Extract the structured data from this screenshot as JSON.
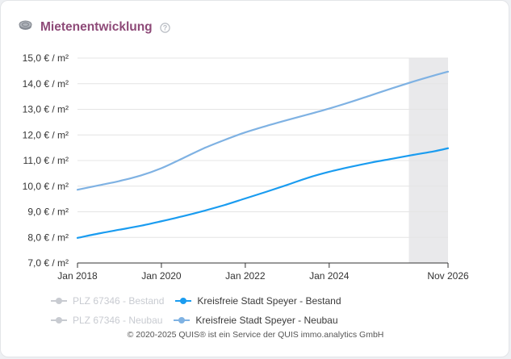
{
  "widget": {
    "title": "Mietenentwicklung",
    "title_icon": "coins-stack-icon",
    "help_icon": "question-circle-icon"
  },
  "chart_data": {
    "type": "line",
    "title": "Mietenentwicklung",
    "xlabel": "",
    "ylabel": "",
    "x_range": [
      2018.0,
      2026.833
    ],
    "ylim": [
      7.0,
      15.0
    ],
    "y_ticks": [
      7,
      8,
      9,
      10,
      11,
      12,
      13,
      14,
      15
    ],
    "y_tick_labels": [
      "7,0 € / m²",
      "8,0 € / m²",
      "9,0 € / m²",
      "10,0 € / m²",
      "11,0 € / m²",
      "12,0 € / m²",
      "13,0 € / m²",
      "14,0 € / m²",
      "15,0 € / m²"
    ],
    "x_ticks": [
      2018,
      2020,
      2022,
      2024,
      2026.833
    ],
    "x_tick_labels": [
      "Jan 2018",
      "Jan 2020",
      "Jan 2022",
      "Jan 2024",
      "Nov 2026"
    ],
    "forecast_band": [
      2025.9,
      2026.833
    ],
    "grid": true,
    "legend_position": "bottom",
    "series": [
      {
        "name": "PLZ 67346 - Bestand",
        "visible": false,
        "color": "#c8cbd1",
        "x": [],
        "values": []
      },
      {
        "name": "Kreisfreie Stadt Speyer - Bestand",
        "visible": true,
        "color": "#1a9cf0",
        "x": [
          2018,
          2018.5,
          2019,
          2019.5,
          2020,
          2020.5,
          2021,
          2021.5,
          2022,
          2022.5,
          2023,
          2023.5,
          2024,
          2024.5,
          2025,
          2025.5,
          2026,
          2026.5,
          2026.833
        ],
        "values": [
          7.98,
          8.15,
          8.3,
          8.45,
          8.63,
          8.82,
          9.03,
          9.26,
          9.52,
          9.78,
          10.05,
          10.33,
          10.56,
          10.75,
          10.92,
          11.07,
          11.22,
          11.36,
          11.48
        ]
      },
      {
        "name": "PLZ 67346 - Neubau",
        "visible": false,
        "color": "#c8cbd1",
        "x": [],
        "values": []
      },
      {
        "name": "Kreisfreie Stadt Speyer - Neubau",
        "visible": true,
        "color": "#7fb2e3",
        "x": [
          2018,
          2018.5,
          2019,
          2019.5,
          2020,
          2020.5,
          2021,
          2021.5,
          2022,
          2022.5,
          2023,
          2023.5,
          2024,
          2024.5,
          2025,
          2025.5,
          2026,
          2026.5,
          2026.833
        ],
        "values": [
          9.86,
          10.03,
          10.2,
          10.41,
          10.7,
          11.08,
          11.47,
          11.8,
          12.1,
          12.35,
          12.58,
          12.8,
          13.03,
          13.28,
          13.55,
          13.82,
          14.08,
          14.32,
          14.47
        ]
      }
    ]
  },
  "footer": {
    "copyright": "© 2020-2025 QUIS® ist ein Service der QUIS immo.analytics GmbH"
  }
}
